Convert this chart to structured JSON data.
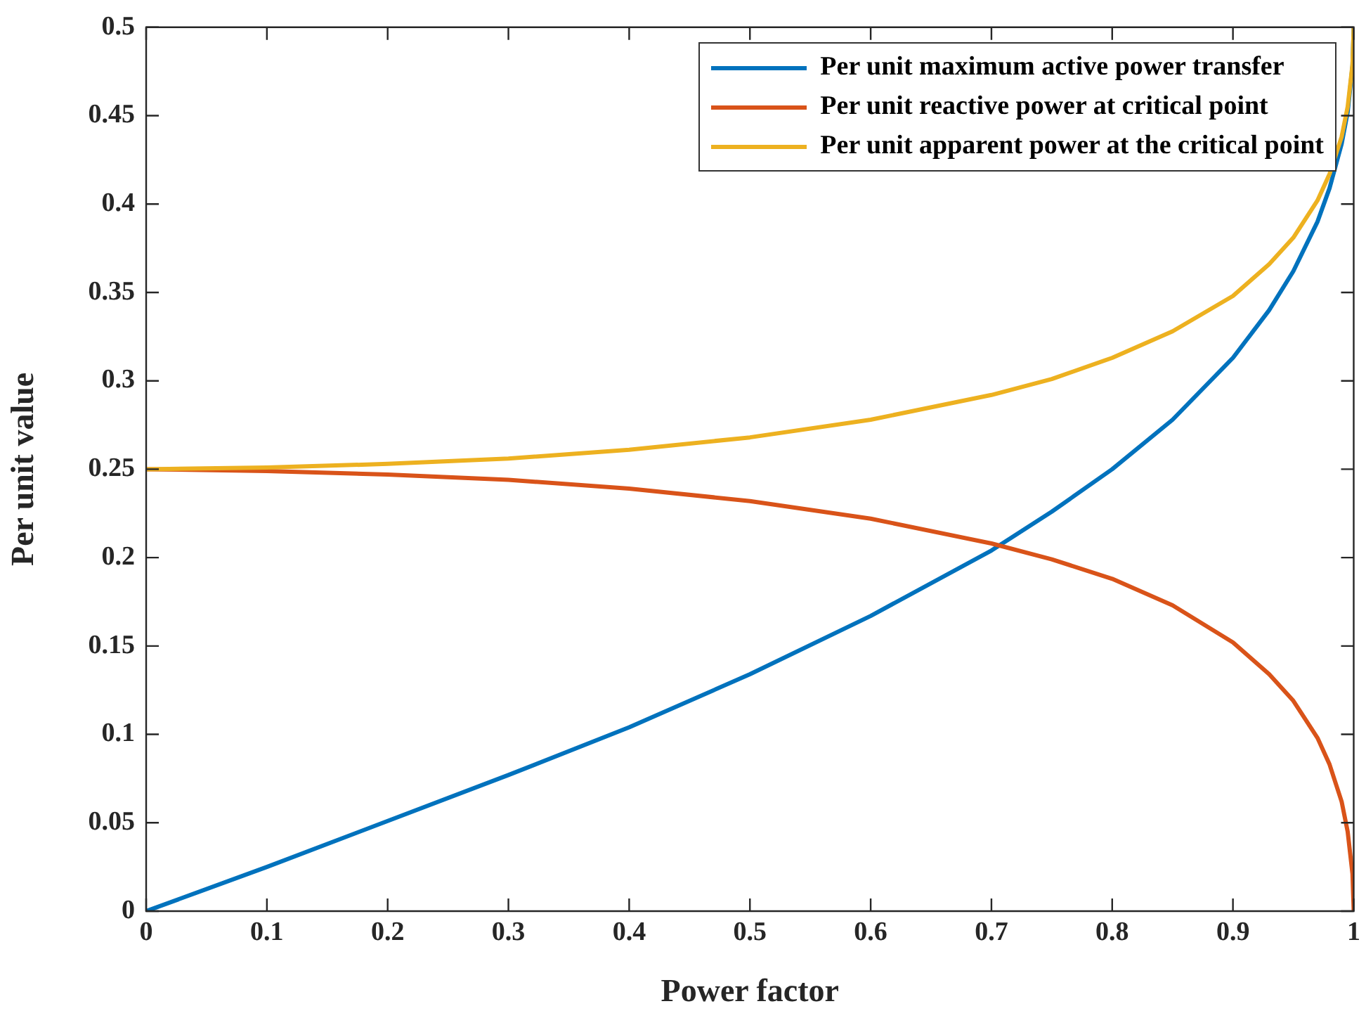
{
  "chart_data": {
    "type": "line",
    "xlabel": "Power factor",
    "ylabel": "Per unit value",
    "x": [
      0,
      0.1,
      0.2,
      0.3,
      0.4,
      0.5,
      0.6,
      0.7,
      0.75,
      0.8,
      0.85,
      0.9,
      0.93,
      0.95,
      0.97,
      0.98,
      0.99,
      0.995,
      0.999,
      1
    ],
    "series": [
      {
        "name": "Per unit maximum active power transfer",
        "color": "#0072bd",
        "values": [
          0,
          0.025,
          0.051,
          0.077,
          0.104,
          0.134,
          0.167,
          0.204,
          0.226,
          0.25,
          0.278,
          0.313,
          0.34,
          0.362,
          0.39,
          0.409,
          0.434,
          0.452,
          0.478,
          0.5
        ]
      },
      {
        "name": "Per unit reactive power at critical point",
        "color": "#d95319",
        "values": [
          0.25,
          0.249,
          0.247,
          0.244,
          0.239,
          0.232,
          0.222,
          0.208,
          0.199,
          0.188,
          0.173,
          0.152,
          0.134,
          0.119,
          0.098,
          0.083,
          0.062,
          0.045,
          0.021,
          0
        ]
      },
      {
        "name": "Per unit apparent power at the critical point",
        "color": "#edb120",
        "values": [
          0.25,
          0.251,
          0.253,
          0.256,
          0.261,
          0.268,
          0.278,
          0.292,
          0.301,
          0.313,
          0.328,
          0.348,
          0.366,
          0.381,
          0.402,
          0.417,
          0.438,
          0.455,
          0.479,
          0.5
        ]
      }
    ],
    "xlim": [
      0,
      1
    ],
    "xticks": [
      0,
      0.1,
      0.2,
      0.3,
      0.4,
      0.5,
      0.6,
      0.7,
      0.8,
      0.9,
      1
    ],
    "ylim": [
      0,
      0.5
    ],
    "yticks": [
      0,
      0.05,
      0.1,
      0.15,
      0.2,
      0.25,
      0.3,
      0.35,
      0.4,
      0.45,
      0.5
    ],
    "grid": false,
    "legend": "top right",
    "marker": "none",
    "line_style": "solid"
  }
}
